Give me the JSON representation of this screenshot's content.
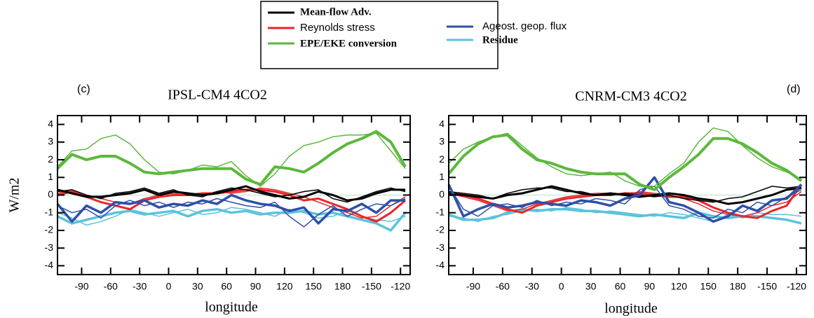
{
  "legend": [
    {
      "name": "Mean-flow Adv.",
      "color": "#000000"
    },
    {
      "name": "Reynolds stress",
      "color": "#e8262a"
    },
    {
      "name": "EPE/EKE conversion",
      "color": "#5cb83c"
    },
    {
      "name": "Ageost. geop. flux",
      "color": "#2e4fa8"
    },
    {
      "name": "Residue",
      "color": "#5bc2dc"
    }
  ],
  "chart_data": [
    {
      "type": "line",
      "label": "(c)",
      "title": "IPSL-CM4   4CO2",
      "xlabel": "longitude",
      "ylabel": "W/m2",
      "x": [
        -115,
        -100,
        -85,
        -70,
        -55,
        -40,
        -25,
        -10,
        5,
        20,
        35,
        50,
        65,
        80,
        95,
        110,
        125,
        140,
        155,
        170,
        185,
        200,
        215,
        230,
        245
      ],
      "xlim": [
        -115,
        250
      ],
      "ylim": [
        -4.5,
        4.5
      ],
      "xticks": [
        -90,
        -60,
        -30,
        0,
        30,
        60,
        90,
        120,
        150,
        180,
        {
          "value": 210,
          "label": "-150"
        },
        {
          "value": 240,
          "label": "-120"
        }
      ],
      "yticks": [
        -4,
        -3,
        -2,
        -1,
        0,
        1,
        2,
        3,
        4
      ],
      "series": [
        {
          "color": "#5bc2dc",
          "width": 1.5,
          "values": [
            -1.0,
            -1.3,
            -1.7,
            -1.5,
            -1.2,
            -0.8,
            -1.0,
            -1.2,
            -1.0,
            -0.8,
            -1.1,
            -1.0,
            -0.7,
            -0.8,
            -1.0,
            -1.2,
            -0.8,
            -1.0,
            -1.3,
            -1.2,
            -0.9,
            -1.2,
            -1.4,
            -1.5,
            -1.2
          ]
        },
        {
          "color": "#5bc2dc",
          "width": 3.5,
          "values": [
            -1.2,
            -1.6,
            -1.4,
            -1.2,
            -1.0,
            -0.9,
            -1.1,
            -1.0,
            -0.9,
            -1.2,
            -0.9,
            -0.8,
            -1.0,
            -0.9,
            -1.1,
            -1.0,
            -1.0,
            -0.9,
            -1.1,
            -1.0,
            -1.2,
            -1.4,
            -1.6,
            -2.0,
            -1.0
          ]
        },
        {
          "color": "#e8262a",
          "width": 1.5,
          "values": [
            0.1,
            0.3,
            0.0,
            -0.2,
            -0.4,
            -0.5,
            -0.2,
            0.0,
            0.1,
            0.1,
            0.0,
            0.2,
            0.1,
            0.2,
            0.4,
            0.3,
            0.1,
            -0.1,
            -0.4,
            -0.7,
            -1.0,
            -1.3,
            -1.2,
            -0.6,
            -0.1
          ]
        },
        {
          "color": "#e8262a",
          "width": 3,
          "values": [
            0.0,
            0.2,
            -0.1,
            -0.4,
            -0.6,
            -0.8,
            -0.3,
            -0.1,
            0.0,
            0.0,
            0.1,
            0.1,
            0.2,
            0.3,
            0.3,
            0.2,
            0.0,
            -0.3,
            -0.2,
            -0.5,
            -0.8,
            -1.2,
            -1.5,
            -1.0,
            -0.3
          ]
        },
        {
          "color": "#000000",
          "width": 1.5,
          "values": [
            0.2,
            0.3,
            0.0,
            -0.2,
            0.1,
            0.2,
            0.4,
            0.1,
            0.3,
            0.0,
            -0.1,
            0.2,
            0.4,
            0.3,
            0.1,
            -0.1,
            0.0,
            0.2,
            0.3,
            -0.2,
            -0.4,
            -0.1,
            0.2,
            0.4,
            0.2
          ]
        },
        {
          "color": "#000000",
          "width": 3,
          "values": [
            0.3,
            0.1,
            -0.1,
            -0.1,
            0.0,
            0.1,
            0.3,
            0.0,
            0.2,
            0.1,
            0.0,
            0.1,
            0.3,
            0.5,
            0.2,
            0.0,
            -0.2,
            -0.1,
            0.2,
            0.0,
            -0.3,
            -0.2,
            0.1,
            0.3,
            0.3
          ]
        },
        {
          "color": "#2e4fa8",
          "width": 1.5,
          "values": [
            -0.6,
            -1.0,
            -0.8,
            -1.3,
            -0.6,
            -0.3,
            -0.6,
            -0.4,
            -0.7,
            -0.4,
            -0.5,
            -0.2,
            -0.4,
            -0.6,
            -0.7,
            -0.4,
            -1.2,
            -1.8,
            -1.1,
            -0.6,
            -1.2,
            -0.8,
            -0.5,
            -0.6,
            -0.2
          ]
        },
        {
          "color": "#2e4fa8",
          "width": 3.5,
          "values": [
            -0.5,
            -1.5,
            -0.6,
            -1.0,
            -0.4,
            -0.5,
            -0.3,
            -0.7,
            -0.5,
            -0.6,
            -0.3,
            -0.5,
            0.0,
            -0.3,
            -0.5,
            -0.6,
            -0.9,
            -0.7,
            -1.6,
            -0.8,
            -0.9,
            -0.5,
            -1.0,
            -0.3,
            -0.3
          ]
        },
        {
          "color": "#5cb83c",
          "width": 1.5,
          "values": [
            1.6,
            2.5,
            2.6,
            3.2,
            3.4,
            2.9,
            2.0,
            1.3,
            1.2,
            1.4,
            1.7,
            1.6,
            1.9,
            1.1,
            0.5,
            1.2,
            2.2,
            2.8,
            3.0,
            3.3,
            3.4,
            3.4,
            3.5,
            2.5,
            1.5
          ]
        },
        {
          "color": "#5cb83c",
          "width": 4,
          "values": [
            1.5,
            2.3,
            2.0,
            2.2,
            2.2,
            1.8,
            1.3,
            1.2,
            1.3,
            1.4,
            1.5,
            1.5,
            1.5,
            0.9,
            0.6,
            1.6,
            1.5,
            1.3,
            1.8,
            2.4,
            2.9,
            3.2,
            3.6,
            3.0,
            1.6
          ]
        }
      ]
    },
    {
      "type": "line",
      "label": "(d)",
      "title": "CNRM-CM3   4CO2",
      "xlabel": "longitude",
      "x": [
        -115,
        -100,
        -85,
        -70,
        -55,
        -40,
        -25,
        -10,
        5,
        20,
        35,
        50,
        65,
        80,
        95,
        110,
        125,
        140,
        155,
        170,
        185,
        200,
        215,
        230,
        245
      ],
      "xlim": [
        -115,
        250
      ],
      "ylim": [
        -4.5,
        4.5
      ],
      "xticks": [
        -90,
        -60,
        -30,
        0,
        30,
        60,
        90,
        120,
        150,
        180,
        {
          "value": 210,
          "label": "-150"
        },
        {
          "value": 240,
          "label": "-120"
        }
      ],
      "yticks": [
        -4,
        -3,
        -2,
        -1,
        0,
        1,
        2,
        3,
        4
      ],
      "series": [
        {
          "color": "#5bc2dc",
          "width": 1.5,
          "values": [
            -1.2,
            -1.3,
            -1.5,
            -1.2,
            -1.1,
            -0.9,
            -0.8,
            -0.9,
            -0.7,
            -0.8,
            -1.0,
            -0.9,
            -1.0,
            -1.1,
            -1.2,
            -1.0,
            -1.1,
            -1.3,
            -1.5,
            -1.1,
            -1.3,
            -1.0,
            -1.1,
            -1.1,
            -1.2
          ]
        },
        {
          "color": "#5bc2dc",
          "width": 3.5,
          "values": [
            -1.1,
            -1.4,
            -1.4,
            -1.3,
            -1.0,
            -0.8,
            -0.9,
            -0.8,
            -0.8,
            -0.9,
            -0.9,
            -1.0,
            -1.1,
            -1.2,
            -1.1,
            -1.2,
            -1.3,
            -1.0,
            -1.2,
            -1.3,
            -1.2,
            -1.2,
            -1.3,
            -1.4,
            -1.6
          ]
        },
        {
          "color": "#e8262a",
          "width": 1.5,
          "values": [
            0.1,
            -0.1,
            -0.3,
            -0.6,
            -0.9,
            -0.8,
            -0.5,
            -0.3,
            -0.1,
            0.0,
            0.1,
            0.1,
            0.0,
            0.2,
            0.1,
            0.0,
            -0.2,
            -0.5,
            -0.9,
            -1.1,
            -1.2,
            -1.0,
            -0.6,
            -0.4,
            0.2
          ]
        },
        {
          "color": "#e8262a",
          "width": 3,
          "values": [
            0.0,
            0.0,
            -0.2,
            -0.5,
            -0.8,
            -1.0,
            -0.6,
            -0.4,
            -0.2,
            -0.1,
            0.0,
            0.0,
            0.1,
            0.1,
            0.0,
            -0.1,
            -0.1,
            -0.3,
            -0.7,
            -1.0,
            -1.2,
            -1.3,
            -0.9,
            -0.6,
            0.6
          ]
        },
        {
          "color": "#000000",
          "width": 1.5,
          "values": [
            0.2,
            0.1,
            0.0,
            -0.2,
            0.1,
            0.3,
            0.4,
            0.4,
            0.2,
            0.2,
            0.0,
            0.0,
            0.1,
            0.0,
            -0.1,
            0.0,
            -0.2,
            -0.3,
            -0.4,
            -0.2,
            -0.1,
            0.2,
            0.5,
            0.4,
            0.5
          ]
        },
        {
          "color": "#000000",
          "width": 3,
          "values": [
            0.1,
            0.0,
            -0.1,
            -0.2,
            0.0,
            0.1,
            0.3,
            0.5,
            0.3,
            0.1,
            0.0,
            0.1,
            0.0,
            -0.1,
            0.0,
            0.1,
            0.0,
            -0.2,
            -0.3,
            -0.5,
            -0.4,
            -0.2,
            0.0,
            0.3,
            0.4
          ]
        },
        {
          "color": "#2e4fa8",
          "width": 1.5,
          "values": [
            0.5,
            -0.8,
            -1.2,
            -0.6,
            -0.5,
            -0.7,
            -0.3,
            -0.6,
            -0.4,
            -0.5,
            -0.2,
            -0.3,
            -0.5,
            0.3,
            0.5,
            -0.6,
            -0.8,
            -1.2,
            -1.3,
            -0.8,
            -1.0,
            -0.4,
            -0.6,
            -0.1,
            0.3
          ]
        },
        {
          "color": "#2e4fa8",
          "width": 3.5,
          "values": [
            0.6,
            -1.2,
            -0.8,
            -0.5,
            -0.7,
            -0.6,
            -0.4,
            -0.5,
            -0.6,
            -0.3,
            -0.4,
            -0.6,
            -0.2,
            0.0,
            1.0,
            -0.4,
            -0.6,
            -1.0,
            -1.5,
            -1.2,
            -0.6,
            -0.9,
            -0.3,
            -0.2,
            0.6
          ]
        },
        {
          "color": "#5cb83c",
          "width": 1.5,
          "values": [
            1.8,
            2.6,
            3.0,
            3.3,
            3.5,
            2.8,
            2.1,
            1.6,
            1.2,
            1.1,
            1.2,
            1.3,
            0.8,
            0.5,
            0.5,
            1.2,
            1.8,
            3.0,
            3.8,
            3.6,
            2.8,
            2.1,
            1.6,
            1.3,
            0.9
          ]
        },
        {
          "color": "#5cb83c",
          "width": 4,
          "values": [
            1.2,
            2.2,
            2.9,
            3.3,
            3.4,
            2.6,
            2.0,
            1.8,
            1.5,
            1.3,
            1.2,
            1.2,
            1.2,
            0.6,
            0.3,
            1.0,
            1.6,
            2.3,
            3.2,
            3.2,
            2.9,
            2.4,
            1.8,
            1.4,
            0.8
          ]
        }
      ]
    }
  ]
}
